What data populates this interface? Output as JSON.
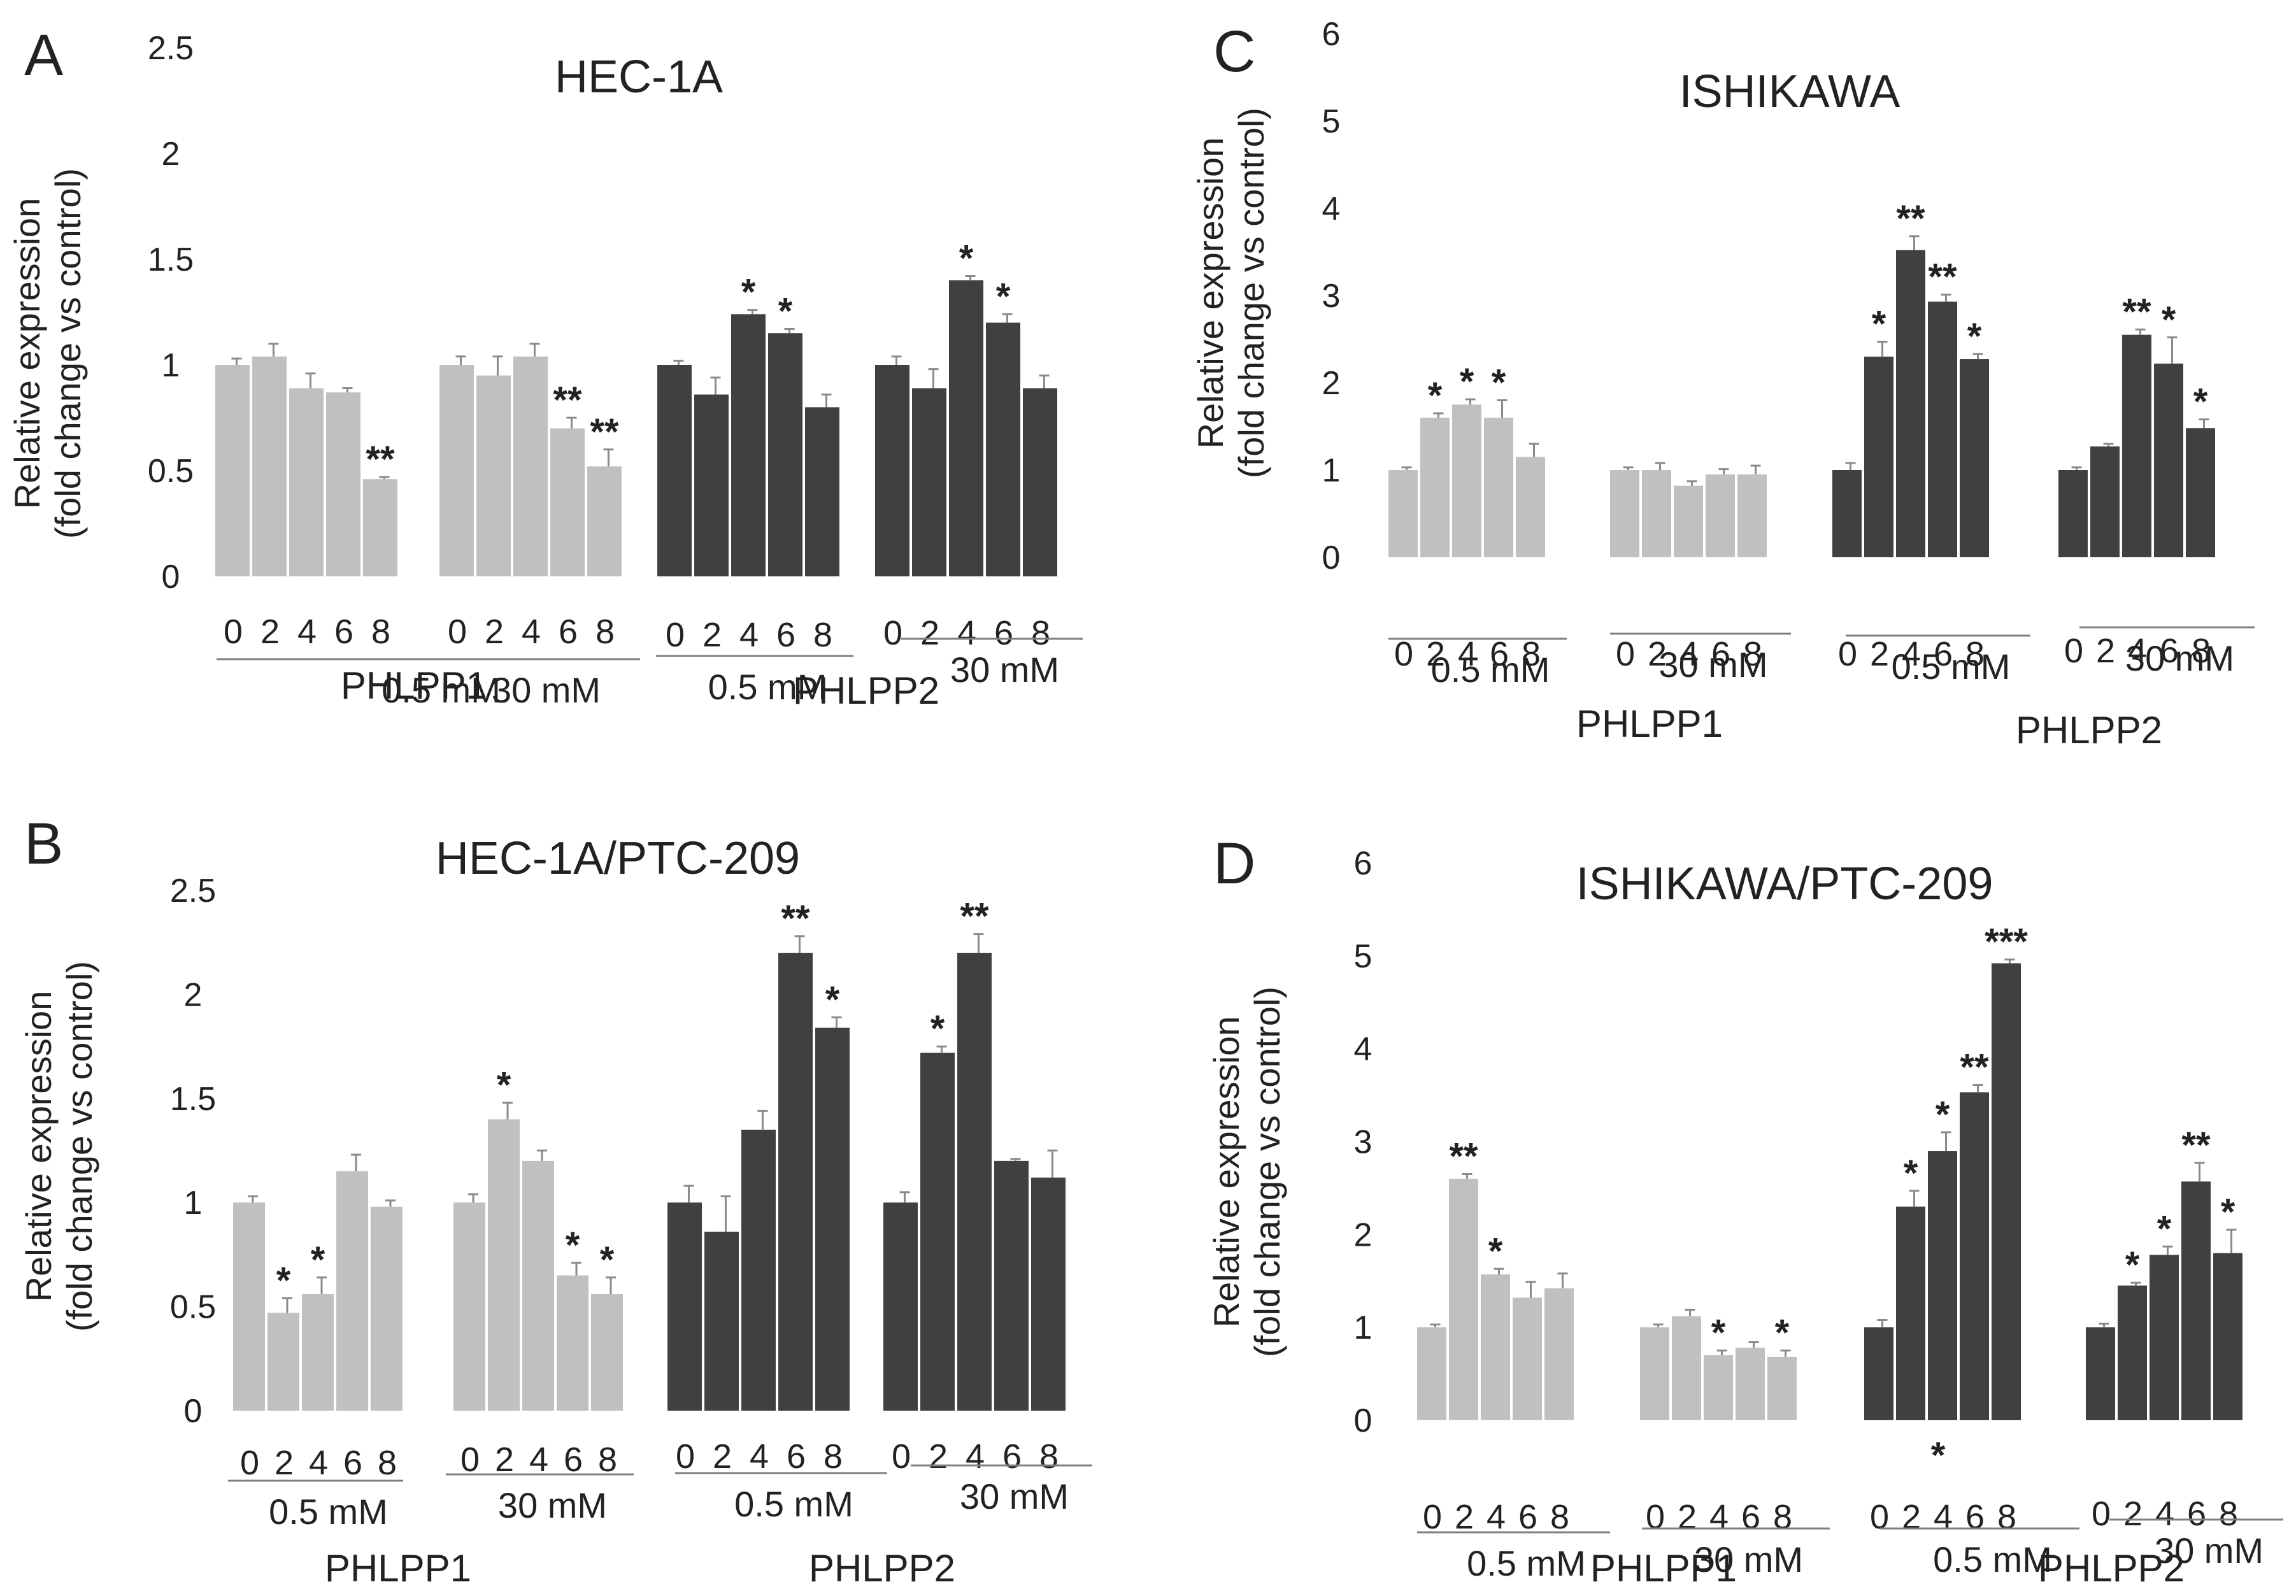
{
  "colors": {
    "light_bar": "#c0c0c0",
    "dark_bar": "#404040",
    "axis": "#7f7f7f",
    "text": "#222222"
  },
  "chart_data": [
    {
      "panel": "A",
      "type": "bar",
      "title": "HEC-1A",
      "ylabel": [
        "Relative expression",
        "(fold change vs control)"
      ],
      "ylim": [
        0,
        2.5
      ],
      "yticks": [
        "0",
        "0.5",
        "1",
        "1.5",
        "2",
        "2.5"
      ],
      "groups": [
        {
          "gene": "PHLPP1",
          "conc": "0.5 mM",
          "shade": "light",
          "categories": [
            "0",
            "2",
            "4",
            "6",
            "8"
          ],
          "values": [
            1.0,
            1.04,
            0.89,
            0.87,
            0.46
          ],
          "errors": [
            0.03,
            0.06,
            0.07,
            0.02,
            0.01
          ],
          "stars": [
            "",
            "",
            "",
            "",
            "**"
          ]
        },
        {
          "gene": "PHLPP1",
          "conc": "30 mM",
          "shade": "light",
          "categories": [
            "0",
            "2",
            "4",
            "6",
            "8"
          ],
          "values": [
            1.0,
            0.95,
            1.04,
            0.7,
            0.52
          ],
          "errors": [
            0.04,
            0.09,
            0.06,
            0.05,
            0.08
          ],
          "stars": [
            "",
            "",
            "",
            "**",
            "**"
          ]
        },
        {
          "gene": "PHLPP2",
          "conc": "0.5 mM",
          "shade": "dark",
          "categories": [
            "0",
            "2",
            "4",
            "6",
            "8"
          ],
          "values": [
            1.0,
            0.86,
            1.24,
            1.15,
            0.8
          ],
          "errors": [
            0.02,
            0.08,
            0.02,
            0.02,
            0.06
          ],
          "stars": [
            "",
            "",
            "*",
            "*",
            ""
          ]
        },
        {
          "gene": "PHLPP2",
          "conc": "30 mM",
          "shade": "dark",
          "categories": [
            "0",
            "2",
            "4",
            "6",
            "8"
          ],
          "values": [
            1.0,
            0.89,
            1.4,
            1.2,
            0.89
          ],
          "errors": [
            0.04,
            0.09,
            0.02,
            0.04,
            0.06
          ],
          "stars": [
            "",
            "",
            "*",
            "*",
            ""
          ]
        }
      ],
      "genes": [
        "PHLPP1",
        "PHLPP2"
      ]
    },
    {
      "panel": "B",
      "type": "bar",
      "title": "HEC-1A/PTC-209",
      "ylabel": [
        "Relative expression",
        "(fold change vs control)"
      ],
      "ylim": [
        0,
        2.5
      ],
      "yticks": [
        "0",
        "0.5",
        "1",
        "1.5",
        "2",
        "2.5"
      ],
      "groups": [
        {
          "gene": "PHLPP1",
          "conc": "0.5 mM",
          "shade": "light",
          "categories": [
            "0",
            "2",
            "4",
            "6",
            "8"
          ],
          "values": [
            1.0,
            0.47,
            0.56,
            1.15,
            0.98
          ],
          "errors": [
            0.03,
            0.07,
            0.08,
            0.08,
            0.03
          ],
          "stars": [
            "",
            "*",
            "*",
            "",
            ""
          ]
        },
        {
          "gene": "PHLPP1",
          "conc": "30 mM",
          "shade": "light",
          "categories": [
            "0",
            "2",
            "4",
            "6",
            "8"
          ],
          "values": [
            1.0,
            1.4,
            1.2,
            0.65,
            0.56
          ],
          "errors": [
            0.04,
            0.08,
            0.05,
            0.06,
            0.08
          ],
          "stars": [
            "",
            "*",
            "",
            "*",
            "*"
          ]
        },
        {
          "gene": "PHLPP2",
          "conc": "0.5 mM",
          "shade": "dark",
          "categories": [
            "0",
            "2",
            "4",
            "6",
            "8"
          ],
          "values": [
            1.0,
            0.86,
            1.35,
            2.2,
            1.84
          ],
          "errors": [
            0.08,
            0.17,
            0.09,
            0.08,
            0.05
          ],
          "stars": [
            "",
            "",
            "",
            "**",
            "*"
          ]
        },
        {
          "gene": "PHLPP2",
          "conc": "30 mM",
          "shade": "dark",
          "categories": [
            "0",
            "2",
            "4",
            "6",
            "8"
          ],
          "values": [
            1.0,
            1.72,
            2.2,
            1.2,
            1.12
          ],
          "errors": [
            0.05,
            0.03,
            0.09,
            0.01,
            0.13
          ],
          "stars": [
            "",
            "*",
            "**",
            "",
            ""
          ]
        }
      ],
      "genes": [
        "PHLPP1",
        "PHLPP2"
      ]
    },
    {
      "panel": "C",
      "type": "bar",
      "title": "ISHIKAWA",
      "ylabel": [
        "Relative expression",
        "(fold change vs control)"
      ],
      "ylim": [
        0,
        6
      ],
      "yticks": [
        "0",
        "1",
        "2",
        "3",
        "4",
        "5",
        "6"
      ],
      "groups": [
        {
          "gene": "PHLPP1",
          "conc": "0.5 mM",
          "shade": "light",
          "categories": [
            "0",
            "2",
            "4",
            "6",
            "8"
          ],
          "values": [
            1.0,
            1.6,
            1.75,
            1.6,
            1.15
          ],
          "errors": [
            0.03,
            0.05,
            0.06,
            0.2,
            0.15
          ],
          "stars": [
            "",
            "*",
            "*",
            "*",
            ""
          ]
        },
        {
          "gene": "PHLPP1",
          "conc": "30 mM",
          "shade": "light",
          "categories": [
            "0",
            "2",
            "4",
            "6",
            "8"
          ],
          "values": [
            1.0,
            1.0,
            0.82,
            0.95,
            0.95
          ],
          "errors": [
            0.03,
            0.08,
            0.05,
            0.06,
            0.1
          ],
          "stars": [
            "",
            "",
            "",
            "",
            ""
          ]
        },
        {
          "gene": "PHLPP2",
          "conc": "0.5 mM",
          "shade": "dark",
          "categories": [
            "0",
            "2",
            "4",
            "6",
            "8"
          ],
          "values": [
            1.0,
            2.3,
            3.52,
            2.93,
            2.27
          ],
          "errors": [
            0.08,
            0.17,
            0.16,
            0.08,
            0.06
          ],
          "stars": [
            "",
            "*",
            "**",
            "**",
            "*"
          ]
        },
        {
          "gene": "PHLPP2",
          "conc": "30 mM",
          "shade": "dark",
          "categories": [
            "0",
            "2",
            "4",
            "6",
            "8"
          ],
          "values": [
            1.0,
            1.27,
            2.55,
            2.22,
            1.48
          ],
          "errors": [
            0.03,
            0.03,
            0.06,
            0.3,
            0.1
          ],
          "stars": [
            "",
            "",
            "**",
            "*",
            "*"
          ]
        }
      ],
      "genes": [
        "PHLPP1",
        "PHLPP2"
      ]
    },
    {
      "panel": "D",
      "type": "bar",
      "title": "ISHIKAWA/PTC-209",
      "ylabel": [
        "Relative expression",
        "(fold change vs control)"
      ],
      "ylim": [
        0,
        6
      ],
      "yticks": [
        "0",
        "1",
        "2",
        "3",
        "4",
        "5",
        "6"
      ],
      "groups": [
        {
          "gene": "PHLPP1",
          "conc": "0.5 mM",
          "shade": "light",
          "categories": [
            "0",
            "2",
            "4",
            "6",
            "8"
          ],
          "values": [
            1.0,
            2.6,
            1.57,
            1.32,
            1.42
          ],
          "errors": [
            0.03,
            0.05,
            0.06,
            0.17,
            0.16
          ],
          "stars": [
            "",
            "**",
            "*",
            "",
            ""
          ]
        },
        {
          "gene": "PHLPP1",
          "conc": "30 mM",
          "shade": "light",
          "categories": [
            "0",
            "2",
            "4",
            "6",
            "8"
          ],
          "values": [
            1.0,
            1.12,
            0.7,
            0.78,
            0.68
          ],
          "errors": [
            0.03,
            0.07,
            0.05,
            0.06,
            0.07
          ],
          "stars": [
            "",
            "",
            "*",
            "",
            "*"
          ]
        },
        {
          "gene": "PHLPP2",
          "conc": "0.5 mM",
          "shade": "dark",
          "categories": [
            "0",
            "2",
            "4",
            "6",
            "8"
          ],
          "values": [
            1.0,
            2.3,
            2.9,
            3.53,
            4.92
          ],
          "errors": [
            0.08,
            0.17,
            0.2,
            0.08,
            0.04
          ],
          "stars": [
            "",
            "*",
            "*",
            "**",
            "***"
          ]
        },
        {
          "gene": "PHLPP2",
          "conc": "30 mM",
          "shade": "dark",
          "categories": [
            "0",
            "2",
            "4",
            "6",
            "8"
          ],
          "values": [
            1.0,
            1.45,
            1.78,
            2.57,
            1.8
          ],
          "errors": [
            0.04,
            0.03,
            0.09,
            0.2,
            0.25
          ],
          "stars": [
            "",
            "*",
            "*",
            "**",
            "*"
          ]
        }
      ],
      "genes": [
        "PHLPP1",
        "PHLPP2"
      ],
      "extra_mark": "*"
    }
  ]
}
